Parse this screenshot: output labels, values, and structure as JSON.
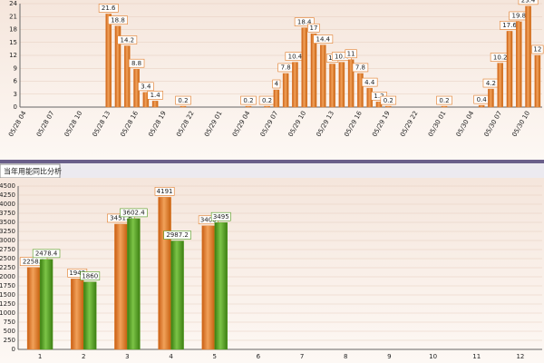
{
  "chart_data": [
    {
      "type": "bar",
      "categories": [
        "05/28 04",
        null,
        null,
        "05/28 07",
        null,
        null,
        "05/28 10",
        null,
        null,
        "05/28 13",
        null,
        null,
        "05/28 16",
        null,
        null,
        "05/28 19",
        null,
        null,
        "05/28 22",
        null,
        null,
        "05/29 01",
        null,
        null,
        "05/29 04",
        null,
        null,
        "05/29 07",
        null,
        null,
        "05/29 10",
        null,
        null,
        "05/29 13",
        null,
        null,
        "05/29 16",
        null,
        null,
        "05/29 19",
        null,
        null,
        "05/29 22",
        null,
        null,
        "05/30 01",
        null,
        null,
        "05/30 04",
        null,
        null,
        "05/30 07",
        null,
        null,
        "05/30 10",
        null
      ],
      "values": [
        0,
        0,
        0,
        0,
        0,
        0,
        0,
        0,
        0,
        21.6,
        18.8,
        14.2,
        8.8,
        3.4,
        1.4,
        0,
        0,
        0.2,
        0,
        0,
        0,
        0,
        0,
        0,
        0.2,
        0,
        0.2,
        4,
        7.8,
        10.4,
        18.4,
        17,
        14.4,
        10,
        10.4,
        11,
        7.8,
        4.4,
        1.2,
        0.2,
        0,
        0,
        0,
        0,
        0,
        0.2,
        0,
        0,
        0,
        0.4,
        4.2,
        10.2,
        17.6,
        19.8,
        23.4,
        12
      ],
      "color": "#e07a26",
      "ylim": [
        0,
        24
      ],
      "yticks": [
        0,
        3,
        6,
        9,
        12,
        15,
        18,
        21,
        24
      ],
      "grid": true
    },
    {
      "type": "bar",
      "title": "当年用能同比分析",
      "categories": [
        "1",
        "2",
        "3",
        "4",
        "5",
        "6",
        "7",
        "8",
        "9",
        "10",
        "11",
        "12"
      ],
      "series": [
        {
          "color": "#e07a26",
          "values": [
            2258.2,
            1942,
            3451.6,
            4191,
            3406,
            null,
            null,
            null,
            null,
            null,
            null,
            null
          ]
        },
        {
          "color": "#4f9a1c",
          "values": [
            2478.4,
            1860,
            3602.4,
            2987.2,
            3495,
            null,
            null,
            null,
            null,
            null,
            null,
            null
          ]
        }
      ],
      "ylim": [
        0,
        4500
      ],
      "yticks": [
        0,
        250,
        500,
        750,
        1000,
        1250,
        1500,
        1750,
        2000,
        2250,
        2500,
        2750,
        3000,
        3250,
        3500,
        3750,
        4000,
        4250,
        4500
      ],
      "grid": true
    }
  ]
}
